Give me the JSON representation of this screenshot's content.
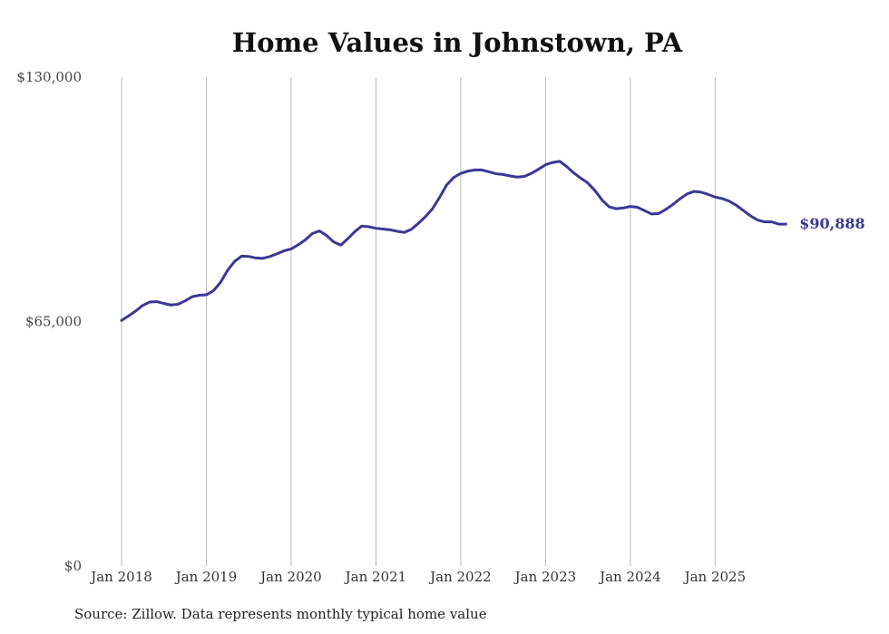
{
  "chart_data": {
    "type": "line",
    "title": "Home Values in Johnstown, PA",
    "source": "Source: Zillow. Data represents monthly typical home value",
    "ylim": [
      0,
      130000
    ],
    "yticks": [
      {
        "value": 0,
        "label": "$0"
      },
      {
        "value": 65000,
        "label": "$65,000"
      },
      {
        "value": 130000,
        "label": "$130,000"
      }
    ],
    "xticks": [
      {
        "index": 0,
        "label": "Jan 2018"
      },
      {
        "index": 12,
        "label": "Jan 2019"
      },
      {
        "index": 24,
        "label": "Jan 2020"
      },
      {
        "index": 36,
        "label": "Jan 2021"
      },
      {
        "index": 48,
        "label": "Jan 2022"
      },
      {
        "index": 60,
        "label": "Jan 2023"
      },
      {
        "index": 72,
        "label": "Jan 2024"
      },
      {
        "index": 84,
        "label": "Jan 2025"
      }
    ],
    "grid": "vertical",
    "line_color": "#3a3896",
    "series": [
      {
        "name": "Typical home value",
        "values": [
          65300,
          66500,
          67800,
          69300,
          70200,
          70300,
          69800,
          69400,
          69600,
          70500,
          71600,
          72000,
          72100,
          73200,
          75400,
          78600,
          81000,
          82400,
          82300,
          81900,
          81800,
          82300,
          83000,
          83800,
          84300,
          85400,
          86700,
          88400,
          89100,
          87900,
          86200,
          85300,
          87000,
          88900,
          90400,
          90200,
          89800,
          89600,
          89400,
          89000,
          88700,
          89500,
          91100,
          92900,
          95000,
          98000,
          101300,
          103300,
          104400,
          105000,
          105300,
          105300,
          104800,
          104300,
          104100,
          103700,
          103400,
          103600,
          104400,
          105500,
          106700,
          107300,
          107600,
          106200,
          104500,
          103100,
          101800,
          99800,
          97300,
          95500,
          95000,
          95200,
          95600,
          95400,
          94500,
          93600,
          93700,
          94800,
          96100,
          97600,
          98900,
          99600,
          99400,
          98800,
          98100,
          97700,
          97000,
          95900,
          94500,
          93100,
          92000,
          91500,
          91500,
          90900,
          90888
        ],
        "end_label": "$90,888"
      }
    ]
  }
}
